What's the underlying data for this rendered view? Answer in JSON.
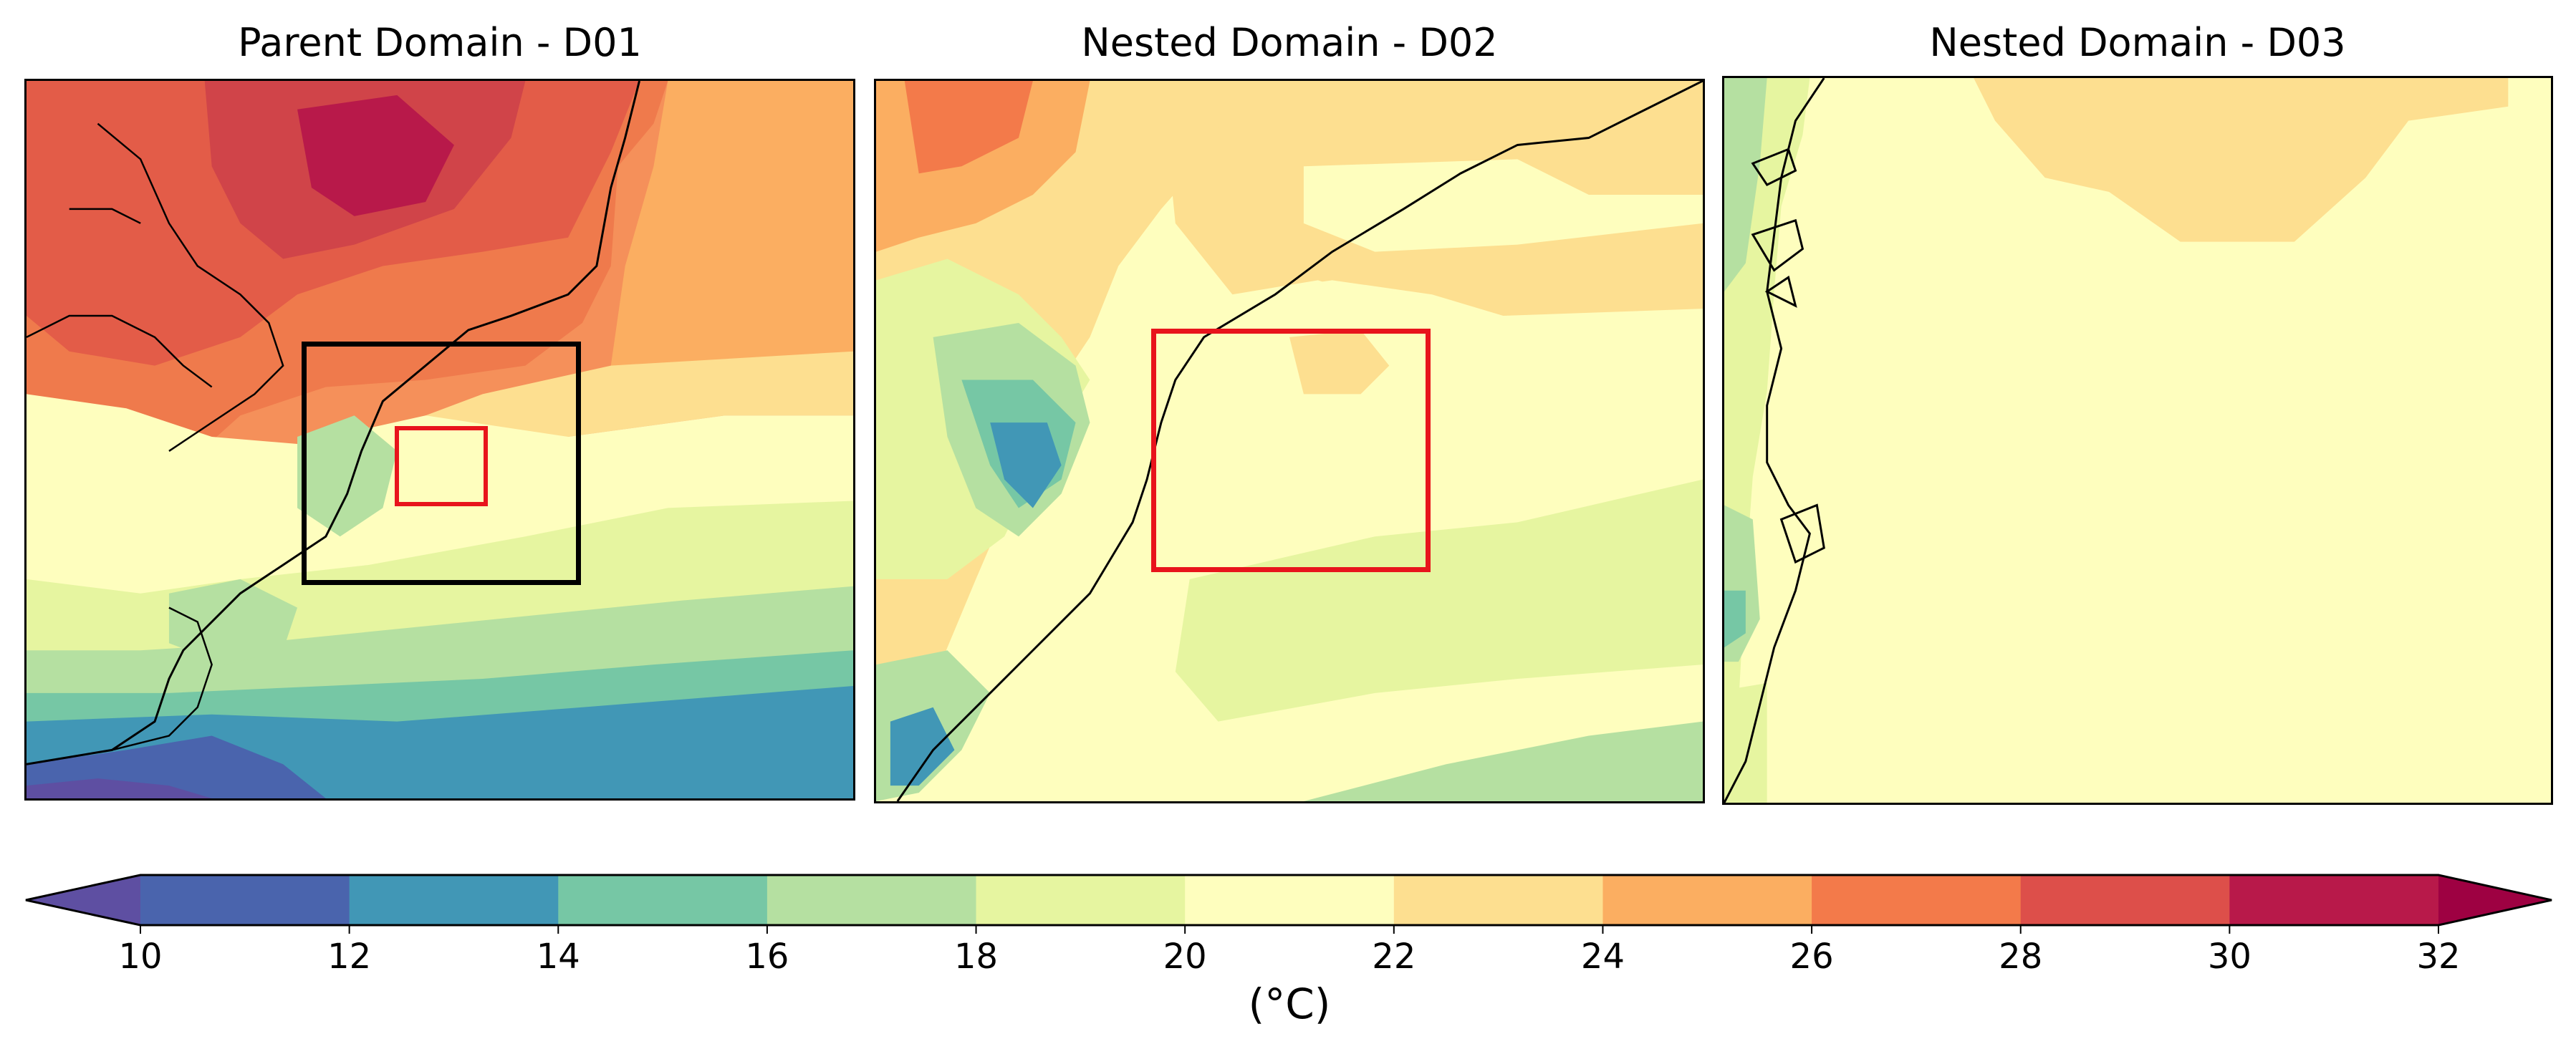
{
  "figure": {
    "panels": [
      {
        "title": "Parent Domain - D01",
        "nested_box_colors": [
          "#000000",
          "#e8141c"
        ]
      },
      {
        "title": "Nested Domain - D02",
        "nested_box_colors": [
          "#e8141c"
        ]
      },
      {
        "title": "Nested Domain - D03",
        "nested_box_colors": []
      }
    ]
  },
  "colorbar": {
    "unit": "(°C)",
    "ticks": [
      "10",
      "12",
      "14",
      "16",
      "18",
      "20",
      "22",
      "24",
      "26",
      "28",
      "30",
      "32"
    ],
    "extend": "both",
    "under_color": "#5e4fa2",
    "over_color": "#9e0142",
    "colors": [
      "#4a64ad",
      "#4197b6",
      "#76c7a5",
      "#b5e0a1",
      "#e6f5a0",
      "#fefebe",
      "#fddf90",
      "#fbae61",
      "#f37a4a",
      "#dd4f4a",
      "#b8194a"
    ]
  }
}
